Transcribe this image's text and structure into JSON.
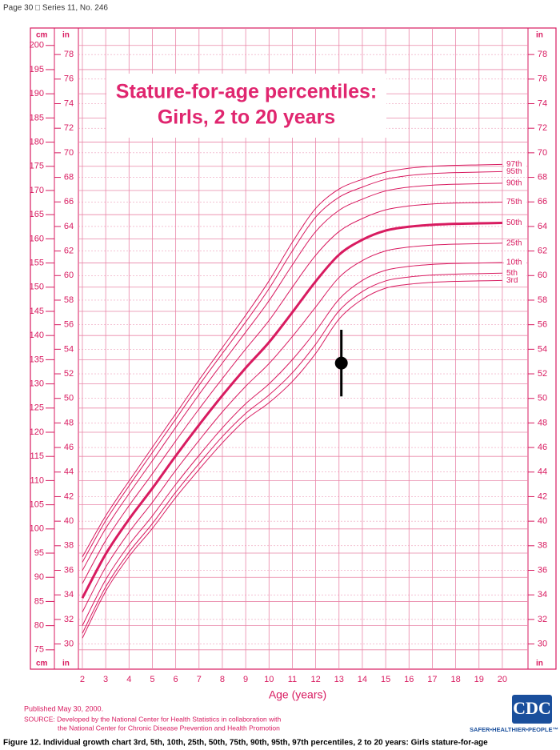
{
  "header": "Page 30 □ Series 11, No. 246",
  "chart_data": {
    "type": "line",
    "title": [
      "Stature-for-age percentiles:",
      "Girls, 2 to 20 years"
    ],
    "x_label": "Age (years)",
    "y_unit": "cm",
    "y2_unit": "in",
    "x": [
      2,
      3,
      4,
      5,
      6,
      7,
      8,
      9,
      10,
      11,
      12,
      13,
      14,
      15,
      16,
      17,
      18,
      19,
      20
    ],
    "xlim": [
      1.83,
      21.1
    ],
    "xticks": [
      2,
      3,
      4,
      5,
      6,
      7,
      8,
      9,
      10,
      11,
      12,
      13,
      14,
      15,
      16,
      17,
      18,
      19,
      20
    ],
    "ylim": [
      71,
      203.6
    ],
    "yticks": [
      75,
      80,
      85,
      90,
      95,
      100,
      105,
      110,
      115,
      120,
      125,
      130,
      135,
      140,
      145,
      150,
      155,
      160,
      165,
      170,
      175,
      180,
      185,
      190,
      195,
      200
    ],
    "y2lim": [
      27.95,
      80.16
    ],
    "y2ticks": [
      30,
      32,
      34,
      36,
      38,
      40,
      42,
      44,
      46,
      48,
      50,
      52,
      54,
      56,
      58,
      60,
      62,
      64,
      66,
      68,
      70,
      72,
      74,
      76,
      78
    ],
    "grid": true,
    "grid_color": "#e986a8",
    "series": [
      {
        "name": "3rd",
        "color": "#d81b60",
        "width": 1,
        "values": [
          77.4,
          87.1,
          94.3,
          100.1,
          106.5,
          112.3,
          117.8,
          122.6,
          126.1,
          130.5,
          136.3,
          143.4,
          147.5,
          149.8,
          150.6,
          151.0,
          151.2,
          151.3,
          151.4
        ]
      },
      {
        "name": "5th",
        "color": "#d81b60",
        "width": 1,
        "values": [
          78.4,
          88.0,
          95.2,
          101.1,
          107.6,
          113.5,
          119.1,
          123.9,
          127.7,
          132.3,
          138.2,
          145.1,
          149.1,
          151.3,
          152.1,
          152.5,
          152.7,
          152.8,
          152.9
        ]
      },
      {
        "name": "10th",
        "color": "#d81b60",
        "width": 1,
        "values": [
          80.0,
          89.5,
          96.7,
          102.7,
          109.2,
          115.2,
          120.9,
          125.9,
          130.0,
          135.0,
          140.9,
          147.5,
          151.4,
          153.5,
          154.3,
          154.7,
          154.9,
          155.0,
          155.1
        ]
      },
      {
        "name": "25th",
        "color": "#d81b60",
        "width": 1,
        "values": [
          82.8,
          92.1,
          99.3,
          105.5,
          112.1,
          118.3,
          124.2,
          129.5,
          134.2,
          139.8,
          145.9,
          152.0,
          155.5,
          157.5,
          158.3,
          158.7,
          158.9,
          159.0,
          159.1
        ]
      },
      {
        "name": "50th",
        "color": "#d81b60",
        "width": 3,
        "values": [
          85.7,
          94.8,
          102.0,
          108.4,
          115.1,
          121.5,
          127.6,
          133.3,
          138.6,
          144.8,
          151.2,
          156.7,
          159.8,
          161.7,
          162.5,
          162.9,
          163.1,
          163.2,
          163.3
        ]
      },
      {
        "name": "75th",
        "color": "#d81b60",
        "width": 1,
        "values": [
          88.7,
          97.6,
          104.8,
          111.4,
          118.2,
          124.8,
          131.1,
          137.2,
          143.1,
          150.0,
          156.6,
          161.5,
          164.2,
          166.0,
          166.8,
          167.2,
          167.4,
          167.5,
          167.6
        ]
      },
      {
        "name": "90th",
        "color": "#d81b60",
        "width": 1,
        "values": [
          91.4,
          100.1,
          107.3,
          114.1,
          121.0,
          127.8,
          134.3,
          140.7,
          147.2,
          154.6,
          161.5,
          165.9,
          168.2,
          169.9,
          170.7,
          171.1,
          171.3,
          171.4,
          171.5
        ]
      },
      {
        "name": "95th",
        "color": "#d81b60",
        "width": 1,
        "values": [
          93.1,
          101.7,
          108.9,
          115.8,
          122.7,
          129.7,
          136.3,
          142.8,
          149.7,
          157.5,
          164.5,
          168.6,
          170.7,
          172.3,
          173.1,
          173.5,
          173.7,
          173.8,
          173.9
        ]
      },
      {
        "name": "97th",
        "color": "#d81b60",
        "width": 1,
        "values": [
          94.2,
          102.7,
          109.9,
          116.9,
          123.8,
          130.8,
          137.5,
          144.2,
          151.3,
          159.3,
          166.3,
          170.3,
          172.3,
          173.8,
          174.6,
          175.0,
          175.2,
          175.3,
          175.4
        ]
      }
    ],
    "points": [
      {
        "x": 13.1,
        "y": 134.3,
        "error": 6.9,
        "color": "#000000"
      }
    ]
  },
  "footer": {
    "published": "Published May 30, 2000.",
    "source": [
      "SOURCE: Developed by the National Center for Health Statistics in collaboration with",
      "the National Center for Chronic Disease Prevention and Health Promotion"
    ],
    "logo": "CDC",
    "slogan": "SAFER•HEALTHIER•PEOPLE™",
    "caption": "Figure 12. Individual growth chart 3rd, 5th, 10th, 25th, 50th, 75th, 90th, 95th, 97th percentiles, 2 to 20 years: Girls stature-for-age"
  }
}
